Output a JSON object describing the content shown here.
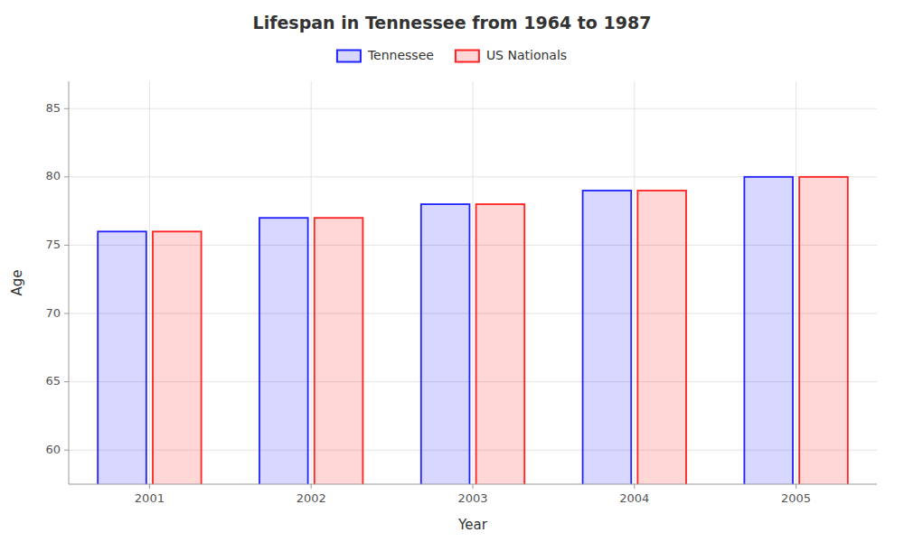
{
  "chart_data": {
    "type": "bar",
    "title": "Lifespan in Tennessee from 1964 to 1987",
    "x_label": "Year",
    "y_label": "Age",
    "categories": [
      "2001",
      "2002",
      "2003",
      "2004",
      "2005"
    ],
    "series": [
      {
        "name": "Tennessee",
        "color": "#2222ff",
        "values": [
          76,
          77,
          78,
          79,
          80
        ]
      },
      {
        "name": "US Nationals",
        "color": "#ff2222",
        "values": [
          76,
          77,
          78,
          79,
          80
        ]
      }
    ],
    "ylim": [
      57.5,
      87
    ],
    "yticks": [
      60,
      65,
      70,
      75,
      80,
      85
    ],
    "grid": true,
    "legend": "top"
  }
}
